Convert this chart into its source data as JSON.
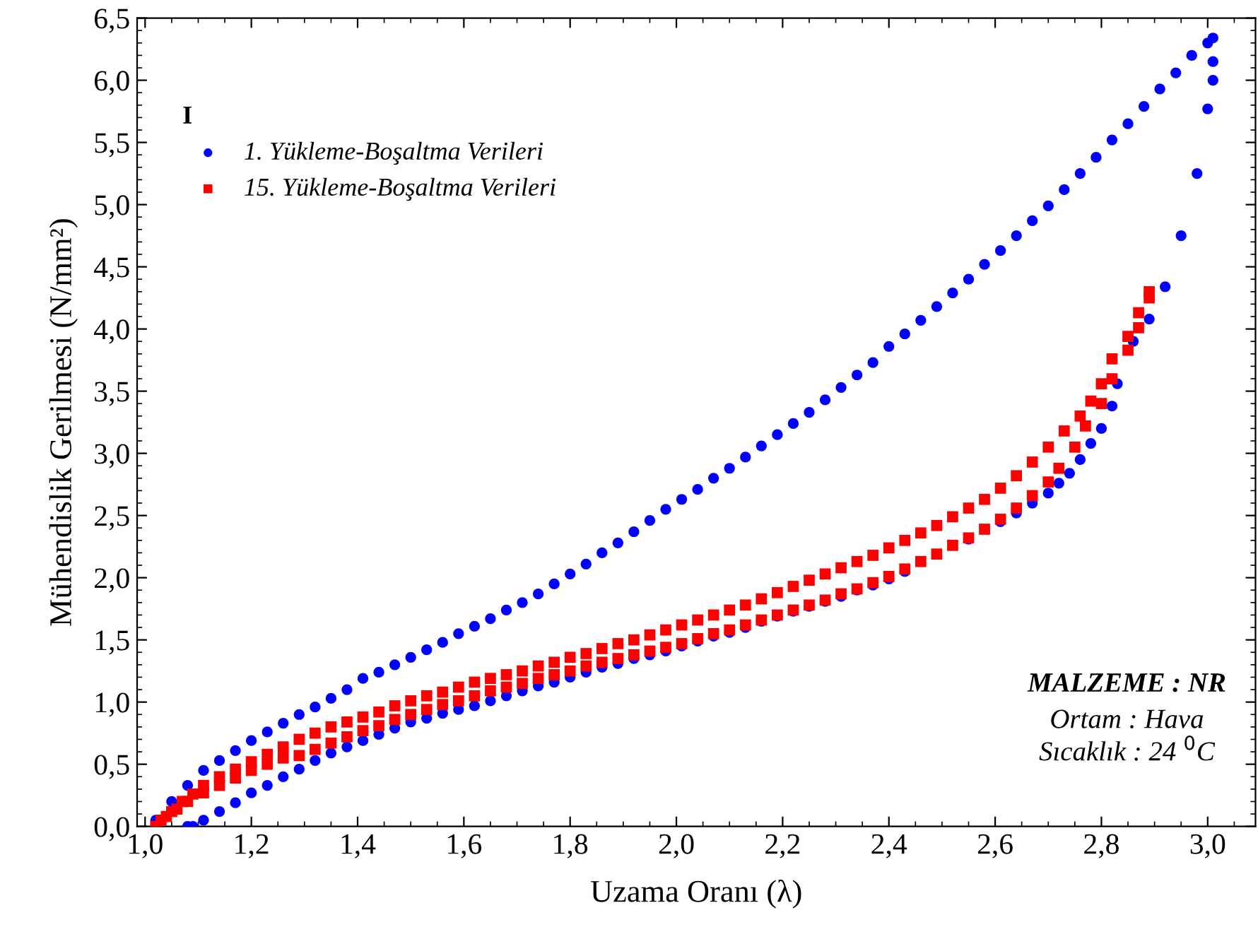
{
  "chart_data": {
    "type": "scatter",
    "xlabel": "Uzama Oranı (λ)",
    "ylabel": "Mühendislik Gerilmesi (N/mm²)",
    "legend_title": "I",
    "legend": "top left",
    "grid": false,
    "xlim": [
      0.985,
      3.09
    ],
    "ylim": [
      0,
      6.5
    ],
    "xticks": [
      {
        "value": 1.0,
        "label": "1,0"
      },
      {
        "value": 1.2,
        "label": "1,2"
      },
      {
        "value": 1.4,
        "label": "1,4"
      },
      {
        "value": 1.6,
        "label": "1,6"
      },
      {
        "value": 1.8,
        "label": "1,8"
      },
      {
        "value": 2.0,
        "label": "2,0"
      },
      {
        "value": 2.2,
        "label": "2,2"
      },
      {
        "value": 2.4,
        "label": "2,4"
      },
      {
        "value": 2.6,
        "label": "2,6"
      },
      {
        "value": 2.8,
        "label": "2,8"
      },
      {
        "value": 3.0,
        "label": "3,0"
      }
    ],
    "yticks": [
      {
        "value": 0,
        "label": "0,0"
      },
      {
        "value": 0.5,
        "label": "0,5"
      },
      {
        "value": 1.0,
        "label": "1,0"
      },
      {
        "value": 1.5,
        "label": "1,5"
      },
      {
        "value": 2.0,
        "label": "2,0"
      },
      {
        "value": 2.5,
        "label": "2,5"
      },
      {
        "value": 3.0,
        "label": "3,0"
      },
      {
        "value": 3.5,
        "label": "3,5"
      },
      {
        "value": 4.0,
        "label": "4,0"
      },
      {
        "value": 4.5,
        "label": "4,5"
      },
      {
        "value": 5.0,
        "label": "5,0"
      },
      {
        "value": 5.5,
        "label": "5,5"
      },
      {
        "value": 6.0,
        "label": "6,0"
      },
      {
        "value": 6.5,
        "label": "6,5"
      }
    ],
    "annotations": [
      "MALZEME : NR",
      "Ortam : Hava",
      "Sıcaklık : 24 $^{0}$C"
    ],
    "series": [
      {
        "name": "1. Yükleme-Boşaltma Verileri",
        "color": "#0000ff",
        "marker": "circle",
        "x": [
          1.02,
          1.05,
          1.08,
          1.11,
          1.14,
          1.17,
          1.2,
          1.23,
          1.26,
          1.29,
          1.32,
          1.35,
          1.38,
          1.41,
          1.44,
          1.47,
          1.5,
          1.53,
          1.56,
          1.59,
          1.62,
          1.65,
          1.68,
          1.71,
          1.74,
          1.77,
          1.8,
          1.83,
          1.86,
          1.89,
          1.92,
          1.95,
          1.98,
          2.01,
          2.04,
          2.07,
          2.1,
          2.13,
          2.16,
          2.19,
          2.22,
          2.25,
          2.28,
          2.31,
          2.34,
          2.37,
          2.4,
          2.43,
          2.46,
          2.49,
          2.52,
          2.55,
          2.58,
          2.61,
          2.64,
          2.67,
          2.7,
          2.73,
          2.76,
          2.79,
          2.82,
          2.85,
          2.88,
          2.91,
          2.94,
          2.97,
          3.0,
          3.01,
          3.01,
          3.01,
          3.0,
          2.98,
          2.95,
          2.92,
          2.89,
          2.86,
          2.83,
          2.82,
          2.8,
          2.78,
          2.76,
          2.74,
          2.72,
          2.7,
          2.67,
          2.64,
          2.61,
          2.58,
          2.55,
          2.52,
          2.49,
          2.46,
          2.43,
          2.4,
          2.37,
          2.34,
          2.31,
          2.28,
          2.25,
          2.22,
          2.19,
          2.16,
          2.13,
          2.1,
          2.07,
          2.04,
          2.01,
          1.98,
          1.95,
          1.92,
          1.89,
          1.86,
          1.83,
          1.8,
          1.77,
          1.74,
          1.71,
          1.68,
          1.65,
          1.62,
          1.59,
          1.56,
          1.53,
          1.5,
          1.47,
          1.44,
          1.41,
          1.38,
          1.35,
          1.32,
          1.29,
          1.26,
          1.23,
          1.2,
          1.17,
          1.14,
          1.11,
          1.09,
          1.08
        ],
        "values": [
          0.05,
          0.2,
          0.33,
          0.45,
          0.53,
          0.61,
          0.69,
          0.76,
          0.83,
          0.9,
          0.96,
          1.03,
          1.1,
          1.19,
          1.24,
          1.3,
          1.36,
          1.42,
          1.48,
          1.55,
          1.61,
          1.67,
          1.74,
          1.8,
          1.87,
          1.95,
          2.03,
          2.11,
          2.2,
          2.28,
          2.37,
          2.46,
          2.55,
          2.63,
          2.71,
          2.8,
          2.88,
          2.97,
          3.06,
          3.15,
          3.24,
          3.33,
          3.43,
          3.53,
          3.63,
          3.73,
          3.86,
          3.96,
          4.07,
          4.18,
          4.29,
          4.4,
          4.52,
          4.63,
          4.75,
          4.87,
          4.99,
          5.12,
          5.25,
          5.38,
          5.52,
          5.65,
          5.79,
          5.93,
          6.06,
          6.2,
          6.3,
          6.34,
          6.15,
          6.0,
          5.77,
          5.25,
          4.75,
          4.34,
          4.08,
          3.9,
          3.56,
          3.38,
          3.2,
          3.08,
          2.95,
          2.84,
          2.76,
          2.68,
          2.6,
          2.52,
          2.45,
          null,
          2.31,
          null,
          null,
          null,
          2.05,
          1.99,
          1.94,
          1.9,
          1.85,
          1.81,
          1.77,
          1.73,
          1.69,
          1.65,
          1.6,
          1.56,
          1.53,
          1.49,
          1.45,
          1.41,
          1.38,
          1.35,
          1.31,
          1.28,
          1.24,
          1.2,
          1.16,
          1.13,
          1.09,
          1.05,
          1.01,
          0.97,
          0.94,
          0.91,
          0.87,
          0.84,
          0.79,
          0.74,
          0.69,
          0.64,
          0.59,
          0.53,
          0.46,
          0.4,
          0.33,
          0.27,
          0.19,
          0.12,
          0.05,
          0,
          0
        ]
      },
      {
        "name": "15. Yükleme-Boşaltma Verileri",
        "color": "#ff0000",
        "marker": "square",
        "x": [
          1.02,
          1.03,
          1.05,
          1.07,
          1.09,
          1.11,
          1.14,
          1.17,
          1.2,
          1.23,
          1.26,
          1.29,
          1.32,
          1.35,
          1.38,
          1.41,
          1.44,
          1.47,
          1.5,
          1.53,
          1.56,
          1.59,
          1.62,
          1.65,
          1.68,
          1.71,
          1.74,
          1.77,
          1.8,
          1.83,
          1.86,
          1.89,
          1.92,
          1.95,
          1.98,
          2.01,
          2.04,
          2.07,
          2.1,
          2.13,
          2.16,
          2.19,
          2.22,
          2.25,
          2.28,
          2.31,
          2.34,
          2.37,
          2.4,
          2.43,
          2.46,
          2.49,
          2.52,
          2.55,
          2.58,
          2.61,
          2.64,
          2.67,
          2.7,
          2.73,
          2.76,
          2.78,
          2.8,
          2.82,
          2.85,
          2.87,
          2.89,
          2.89,
          2.87,
          2.85,
          2.82,
          2.8,
          2.77,
          2.75,
          2.72,
          2.7,
          2.67,
          2.64,
          2.61,
          2.58,
          2.55,
          2.52,
          2.49,
          2.46,
          2.43,
          2.4,
          2.37,
          2.34,
          2.31,
          2.28,
          2.25,
          2.22,
          2.19,
          2.16,
          2.13,
          2.1,
          2.07,
          2.04,
          2.01,
          1.98,
          1.95,
          1.92,
          1.89,
          1.86,
          1.83,
          1.8,
          1.77,
          1.74,
          1.71,
          1.68,
          1.65,
          1.62,
          1.59,
          1.56,
          1.53,
          1.5,
          1.47,
          1.44,
          1.41,
          1.38,
          1.35,
          1.32,
          1.29,
          1.26,
          1.23,
          1.2,
          1.17,
          1.14,
          1.11,
          1.08,
          1.06,
          1.04
        ],
        "values": [
          0,
          0.05,
          0.12,
          0.2,
          0.26,
          0.33,
          0.4,
          0.46,
          0.52,
          0.58,
          0.64,
          0.7,
          0.75,
          0.8,
          0.84,
          0.88,
          0.92,
          0.97,
          1.01,
          1.05,
          1.08,
          1.12,
          1.16,
          1.19,
          1.22,
          1.25,
          1.29,
          1.32,
          1.36,
          1.39,
          1.43,
          1.47,
          1.5,
          1.54,
          1.58,
          1.62,
          1.66,
          1.7,
          1.74,
          1.78,
          1.83,
          1.88,
          1.93,
          1.98,
          2.03,
          2.08,
          2.13,
          2.18,
          2.24,
          2.3,
          2.36,
          2.42,
          2.49,
          2.56,
          2.63,
          2.72,
          2.82,
          2.93,
          3.05,
          3.18,
          3.3,
          3.42,
          3.56,
          3.76,
          3.94,
          4.13,
          4.3,
          4.25,
          4.01,
          3.83,
          3.6,
          3.4,
          3.22,
          3.05,
          2.88,
          2.77,
          2.66,
          2.56,
          2.47,
          2.39,
          2.32,
          2.26,
          2.19,
          2.13,
          2.07,
          2.01,
          1.96,
          1.91,
          1.87,
          1.82,
          1.78,
          1.74,
          1.7,
          1.66,
          1.62,
          1.58,
          1.55,
          1.51,
          1.47,
          1.44,
          1.41,
          1.38,
          1.35,
          1.32,
          1.29,
          1.25,
          1.22,
          1.19,
          1.15,
          1.12,
          1.09,
          1.05,
          1.01,
          0.98,
          0.94,
          0.9,
          0.86,
          0.81,
          0.77,
          0.72,
          0.67,
          0.62,
          0.57,
          0.55,
          0.5,
          0.45,
          0.39,
          0.33,
          0.27,
          0.2,
          0.14,
          0.08
        ]
      }
    ]
  }
}
